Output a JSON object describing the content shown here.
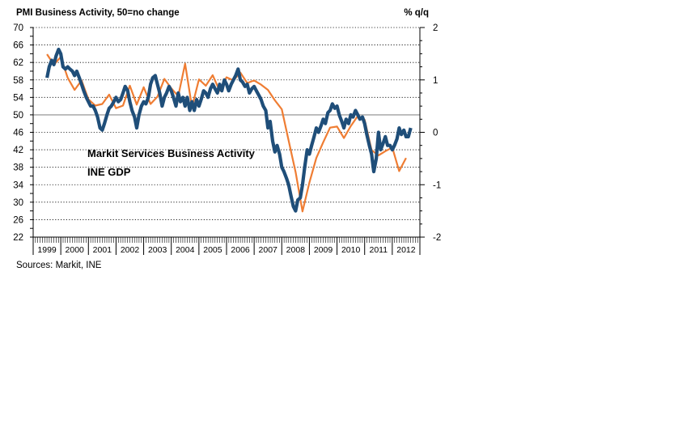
{
  "colors": {
    "pmi": "#1f4e79",
    "gdp": "#ef7d33",
    "axis": "#000000",
    "grid": "#000000",
    "ref_line": "#a0a0a0"
  },
  "chart_data": {
    "type": "line",
    "title": "PMI Business Activity, 50=no change",
    "right_title": "% q/q",
    "source": "Sources: Markit, INE",
    "left_axis": {
      "min": 22,
      "max": 70,
      "ticks": [
        "70",
        "66",
        "62",
        "58",
        "54",
        "50",
        "46",
        "42",
        "38",
        "34",
        "30",
        "26",
        "22"
      ]
    },
    "right_axis": {
      "min": -2,
      "max": 2,
      "ticks": [
        "2",
        "1",
        "0",
        "-1",
        "-2"
      ]
    },
    "reference_line": 50,
    "x_range": [
      1999.0,
      2013.0
    ],
    "years": [
      "1999",
      "2000",
      "2001",
      "2002",
      "2003",
      "2004",
      "2005",
      "2006",
      "2007",
      "2008",
      "2009",
      "2010",
      "2011",
      "2012"
    ],
    "series": [
      {
        "name": "Markit Services Business Activity",
        "axis": "left",
        "points": [
          [
            1999.5,
            58.5
          ],
          [
            1999.58,
            61.0
          ],
          [
            1999.67,
            62.5
          ],
          [
            1999.75,
            61.5
          ],
          [
            1999.83,
            63.5
          ],
          [
            1999.92,
            65.0
          ],
          [
            2000.0,
            64.0
          ],
          [
            2000.08,
            61.0
          ],
          [
            2000.17,
            60.5
          ],
          [
            2000.25,
            61.0
          ],
          [
            2000.33,
            60.5
          ],
          [
            2000.42,
            60.0
          ],
          [
            2000.5,
            59.0
          ],
          [
            2000.58,
            60.0
          ],
          [
            2000.67,
            58.5
          ],
          [
            2000.75,
            57.0
          ],
          [
            2000.83,
            55.5
          ],
          [
            2000.92,
            54.0
          ],
          [
            2001.0,
            53.0
          ],
          [
            2001.08,
            52.0
          ],
          [
            2001.17,
            52.0
          ],
          [
            2001.25,
            51.0
          ],
          [
            2001.33,
            49.5
          ],
          [
            2001.42,
            47.0
          ],
          [
            2001.5,
            46.5
          ],
          [
            2001.58,
            48.0
          ],
          [
            2001.67,
            50.0
          ],
          [
            2001.75,
            51.5
          ],
          [
            2001.83,
            52.0
          ],
          [
            2001.92,
            53.0
          ],
          [
            2002.0,
            54.0
          ],
          [
            2002.08,
            53.0
          ],
          [
            2002.17,
            53.5
          ],
          [
            2002.25,
            55.0
          ],
          [
            2002.33,
            56.5
          ],
          [
            2002.42,
            55.5
          ],
          [
            2002.5,
            53.0
          ],
          [
            2002.58,
            51.0
          ],
          [
            2002.67,
            49.5
          ],
          [
            2002.75,
            47.0
          ],
          [
            2002.83,
            50.0
          ],
          [
            2002.92,
            52.0
          ],
          [
            2003.0,
            53.0
          ],
          [
            2003.08,
            52.5
          ],
          [
            2003.17,
            54.0
          ],
          [
            2003.25,
            57.0
          ],
          [
            2003.33,
            58.5
          ],
          [
            2003.42,
            59.0
          ],
          [
            2003.5,
            57.0
          ],
          [
            2003.58,
            55.0
          ],
          [
            2003.67,
            52.0
          ],
          [
            2003.75,
            54.0
          ],
          [
            2003.83,
            55.0
          ],
          [
            2003.92,
            56.5
          ],
          [
            2004.0,
            55.5
          ],
          [
            2004.08,
            54.0
          ],
          [
            2004.17,
            52.0
          ],
          [
            2004.25,
            55.0
          ],
          [
            2004.33,
            53.0
          ],
          [
            2004.42,
            54.0
          ],
          [
            2004.5,
            52.0
          ],
          [
            2004.58,
            54.0
          ],
          [
            2004.67,
            51.0
          ],
          [
            2004.75,
            53.0
          ],
          [
            2004.83,
            51.0
          ],
          [
            2004.92,
            53.5
          ],
          [
            2005.0,
            52.0
          ],
          [
            2005.08,
            53.5
          ],
          [
            2005.17,
            55.5
          ],
          [
            2005.25,
            55.0
          ],
          [
            2005.33,
            54.0
          ],
          [
            2005.42,
            56.0
          ],
          [
            2005.5,
            57.0
          ],
          [
            2005.58,
            56.0
          ],
          [
            2005.67,
            55.0
          ],
          [
            2005.75,
            57.0
          ],
          [
            2005.83,
            55.5
          ],
          [
            2005.92,
            58.0
          ],
          [
            2006.0,
            57.0
          ],
          [
            2006.08,
            55.5
          ],
          [
            2006.17,
            57.0
          ],
          [
            2006.25,
            58.0
          ],
          [
            2006.33,
            59.0
          ],
          [
            2006.42,
            60.5
          ],
          [
            2006.5,
            58.0
          ],
          [
            2006.58,
            57.5
          ],
          [
            2006.67,
            56.5
          ],
          [
            2006.75,
            57.0
          ],
          [
            2006.83,
            55.0
          ],
          [
            2006.92,
            56.0
          ],
          [
            2007.0,
            56.5
          ],
          [
            2007.08,
            55.5
          ],
          [
            2007.17,
            54.5
          ],
          [
            2007.25,
            53.5
          ],
          [
            2007.33,
            52.0
          ],
          [
            2007.42,
            51.0
          ],
          [
            2007.5,
            47.0
          ],
          [
            2007.58,
            48.5
          ],
          [
            2007.67,
            44.0
          ],
          [
            2007.75,
            41.5
          ],
          [
            2007.83,
            43.0
          ],
          [
            2007.92,
            41.0
          ],
          [
            2008.0,
            38.0
          ],
          [
            2008.08,
            37.0
          ],
          [
            2008.17,
            35.5
          ],
          [
            2008.25,
            34.0
          ],
          [
            2008.33,
            31.5
          ],
          [
            2008.42,
            29.0
          ],
          [
            2008.5,
            28.0
          ],
          [
            2008.58,
            30.5
          ],
          [
            2008.67,
            31.0
          ],
          [
            2008.75,
            34.0
          ],
          [
            2008.83,
            38.0
          ],
          [
            2008.92,
            42.0
          ],
          [
            2009.0,
            41.0
          ],
          [
            2009.08,
            43.0
          ],
          [
            2009.17,
            45.0
          ],
          [
            2009.25,
            47.0
          ],
          [
            2009.33,
            46.0
          ],
          [
            2009.42,
            47.5
          ],
          [
            2009.5,
            49.0
          ],
          [
            2009.58,
            48.0
          ],
          [
            2009.67,
            50.5
          ],
          [
            2009.75,
            51.0
          ],
          [
            2009.83,
            52.5
          ],
          [
            2009.92,
            51.5
          ],
          [
            2010.0,
            52.0
          ],
          [
            2010.08,
            50.0
          ],
          [
            2010.17,
            48.5
          ],
          [
            2010.25,
            47.0
          ],
          [
            2010.33,
            49.0
          ],
          [
            2010.42,
            48.0
          ],
          [
            2010.5,
            50.0
          ],
          [
            2010.58,
            49.5
          ],
          [
            2010.67,
            51.0
          ],
          [
            2010.75,
            50.0
          ],
          [
            2010.83,
            49.0
          ],
          [
            2010.92,
            49.5
          ],
          [
            2011.0,
            48.0
          ],
          [
            2011.08,
            45.5
          ],
          [
            2011.17,
            43.0
          ],
          [
            2011.25,
            41.0
          ],
          [
            2011.33,
            37.0
          ],
          [
            2011.42,
            40.0
          ],
          [
            2011.5,
            46.0
          ],
          [
            2011.58,
            42.0
          ],
          [
            2011.67,
            43.5
          ],
          [
            2011.75,
            45.0
          ],
          [
            2011.83,
            43.0
          ],
          [
            2011.92,
            43.0
          ],
          [
            2012.0,
            42.0
          ],
          [
            2012.08,
            43.0
          ],
          [
            2012.17,
            44.5
          ],
          [
            2012.25,
            47.0
          ],
          [
            2012.33,
            45.5
          ],
          [
            2012.42,
            46.5
          ],
          [
            2012.5,
            45.0
          ],
          [
            2012.58,
            45.0
          ],
          [
            2012.67,
            47.0
          ]
        ]
      },
      {
        "name": "INE GDP",
        "axis": "right",
        "points": [
          [
            1999.5,
            1.49
          ],
          [
            1999.75,
            1.29
          ],
          [
            2000.0,
            1.44
          ],
          [
            2000.25,
            1.04
          ],
          [
            2000.5,
            0.81
          ],
          [
            2000.75,
            0.99
          ],
          [
            2001.0,
            0.63
          ],
          [
            2001.25,
            0.51
          ],
          [
            2001.5,
            0.54
          ],
          [
            2001.75,
            0.72
          ],
          [
            2002.0,
            0.46
          ],
          [
            2002.25,
            0.51
          ],
          [
            2002.5,
            0.89
          ],
          [
            2002.75,
            0.53
          ],
          [
            2003.0,
            0.86
          ],
          [
            2003.25,
            0.54
          ],
          [
            2003.5,
            0.68
          ],
          [
            2003.75,
            1.02
          ],
          [
            2004.0,
            0.84
          ],
          [
            2004.25,
            0.69
          ],
          [
            2004.5,
            1.31
          ],
          [
            2004.75,
            0.48
          ],
          [
            2005.0,
            1.01
          ],
          [
            2005.25,
            0.89
          ],
          [
            2005.5,
            1.09
          ],
          [
            2005.75,
            0.79
          ],
          [
            2006.0,
            1.05
          ],
          [
            2006.25,
            0.99
          ],
          [
            2006.5,
            1.14
          ],
          [
            2006.75,
            0.94
          ],
          [
            2007.0,
            0.99
          ],
          [
            2007.25,
            0.91
          ],
          [
            2007.5,
            0.81
          ],
          [
            2007.75,
            0.61
          ],
          [
            2008.0,
            0.44
          ],
          [
            2008.25,
            -0.16
          ],
          [
            2008.5,
            -0.76
          ],
          [
            2008.75,
            -1.51
          ],
          [
            2009.0,
            -0.96
          ],
          [
            2009.25,
            -0.49
          ],
          [
            2009.5,
            -0.19
          ],
          [
            2009.75,
            0.09
          ],
          [
            2010.0,
            0.11
          ],
          [
            2010.25,
            -0.11
          ],
          [
            2010.5,
            0.12
          ],
          [
            2010.75,
            0.31
          ],
          [
            2011.0,
            0.24
          ],
          [
            2011.25,
            -0.34
          ],
          [
            2011.5,
            -0.44
          ],
          [
            2011.75,
            -0.36
          ],
          [
            2012.0,
            -0.29
          ],
          [
            2012.25,
            -0.74
          ],
          [
            2012.5,
            -0.49
          ]
        ]
      }
    ]
  }
}
